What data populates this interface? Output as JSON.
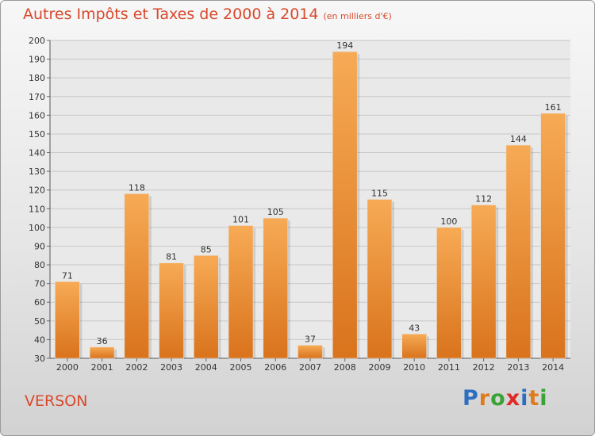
{
  "header": {
    "title": "Autres Impôts et Taxes de 2000 à 2014",
    "unit": "(en milliers d'€)"
  },
  "footer": {
    "city": "VERSON",
    "logo_letters": [
      "P",
      "r",
      "o",
      "x",
      "i",
      "t",
      "i"
    ],
    "logo_colors": [
      "#2c6fbf",
      "#e07b1c",
      "#3aa335",
      "#e02a2a",
      "#2c6fbf",
      "#e07b1c",
      "#3aa335"
    ]
  },
  "colors": {
    "bar_top": "#f7aa55",
    "bar_bottom": "#d9731c",
    "title": "#d8492c",
    "grid": "#c8c8c8"
  },
  "chart_data": {
    "type": "bar",
    "title": "Autres Impôts et Taxes de 2000 à 2014",
    "subtitle": "(en milliers d'€)",
    "categories": [
      "2000",
      "2001",
      "2002",
      "2003",
      "2004",
      "2005",
      "2006",
      "2007",
      "2008",
      "2009",
      "2010",
      "2011",
      "2012",
      "2013",
      "2014"
    ],
    "values": [
      71,
      36,
      118,
      81,
      85,
      101,
      105,
      37,
      194,
      115,
      43,
      100,
      112,
      144,
      161
    ],
    "ylim": [
      30,
      200
    ],
    "ytick_step": 10,
    "grid": true,
    "legend": "none"
  }
}
